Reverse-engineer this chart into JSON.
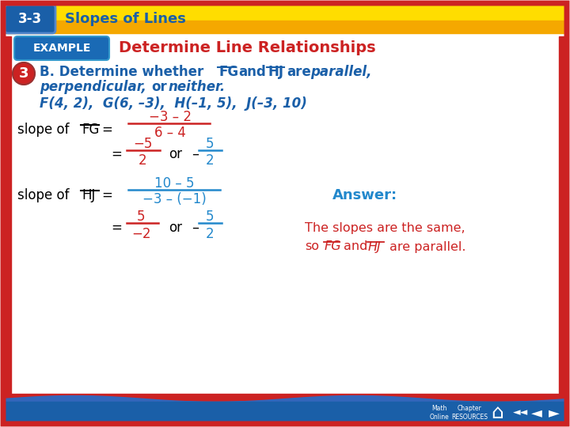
{
  "bg_color": "#ffffff",
  "header_bg_top": "#ffdd00",
  "header_bg_bottom": "#f5a800",
  "header_text": "3-3",
  "header_label": "Slopes of Lines",
  "header_text_color": "#1a5fa8",
  "example_btn_color": "#1a6ab5",
  "example_btn_text": "EXAMPLE",
  "title_text": "Determine Line Relationships",
  "title_color": "#cc2222",
  "step_circle_color": "#cc2222",
  "body_color": "#1a5fa8",
  "fraction_color": "#cc2222",
  "frac2_color": "#2288cc",
  "answer_label_color": "#2288cc",
  "answer_text_color": "#cc2222",
  "bottom_bar_color": "#1a5fa8",
  "left_bar_color": "#cc2222",
  "border_color": "#cc2222"
}
